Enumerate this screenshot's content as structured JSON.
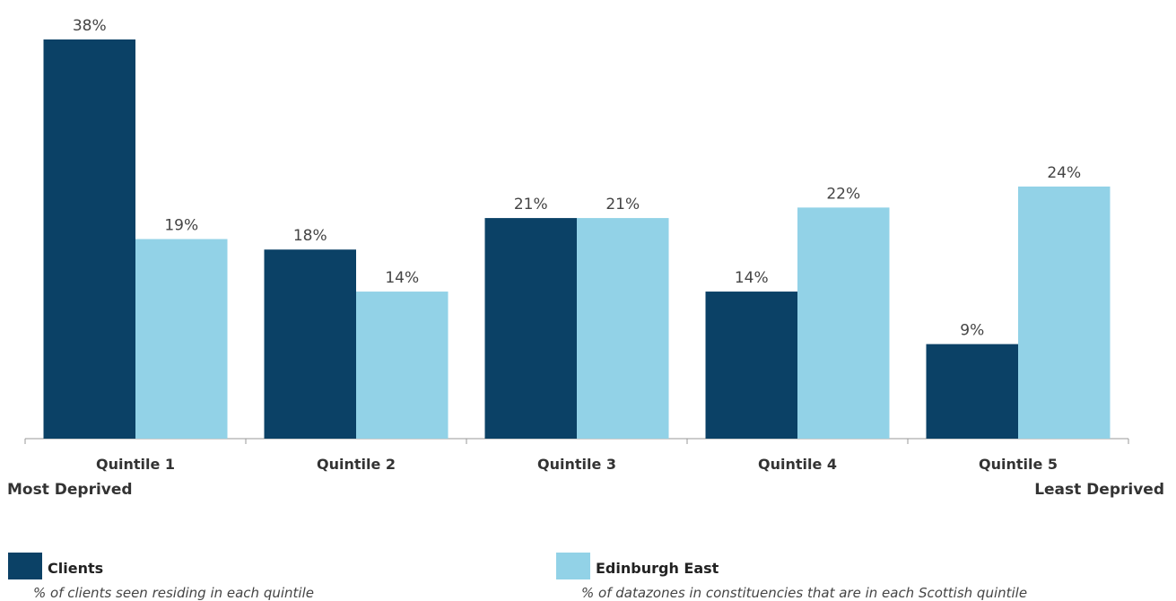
{
  "chart_data": {
    "type": "bar",
    "categories": [
      "Quintile 1",
      "Quintile 2",
      "Quintile 3",
      "Quintile 4",
      "Quintile 5"
    ],
    "series": [
      {
        "name": "Clients",
        "values": [
          38,
          18,
          21,
          14,
          9
        ],
        "labels": [
          "38%",
          "18%",
          "21%",
          "14%",
          "9%"
        ],
        "color": "#0b4166"
      },
      {
        "name": "Edinburgh East",
        "values": [
          19,
          14,
          21,
          22,
          24
        ],
        "labels": [
          "19%",
          "14%",
          "21%",
          "22%",
          "24%"
        ],
        "color": "#92d2e7"
      }
    ],
    "ylim": [
      0,
      38
    ],
    "grid": false,
    "axis_end_labels": {
      "left": "Most Deprived",
      "right": "Least Deprived"
    },
    "legend_placement": "bottom"
  },
  "legend": [
    {
      "name": "Clients",
      "description": "% of clients seen residing in each quintile",
      "color": "#0b4166"
    },
    {
      "name": "Edinburgh East",
      "description": "% of datazones in constituencies that are in each Scottish quintile",
      "color": "#92d2e7"
    }
  ],
  "colors": {
    "axis": "#999999",
    "label_text": "#444444"
  }
}
